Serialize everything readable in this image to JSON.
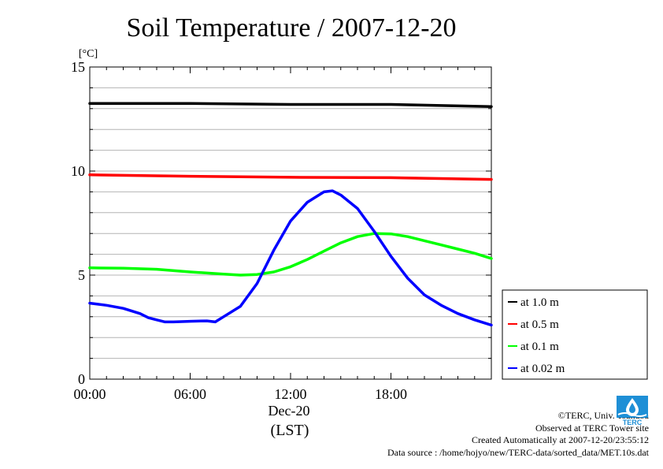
{
  "chart_data": {
    "type": "line",
    "title": "Soil Temperature / 2007-12-20",
    "ylabel": "[°C]",
    "xlabel": "(LST)",
    "date_label": "Dec-20",
    "ylim": [
      0,
      15
    ],
    "yticks": [
      "0",
      "5",
      "10",
      "15"
    ],
    "xlim": [
      0,
      24
    ],
    "xticks": [
      {
        "hour": 0,
        "label": "00:00"
      },
      {
        "hour": 6,
        "label": "06:00"
      },
      {
        "hour": 12,
        "label": "12:00"
      },
      {
        "hour": 18,
        "label": "18:00"
      }
    ],
    "grid": true,
    "legend_position": "right",
    "series": [
      {
        "name": "at 1.0 m",
        "color": "#000000",
        "x": [
          0,
          6,
          12,
          18,
          24
        ],
        "y": [
          13.25,
          13.25,
          13.2,
          13.2,
          13.1
        ]
      },
      {
        "name": "at 0.5 m",
        "color": "#ff0000",
        "x": [
          0,
          6,
          12,
          18,
          24
        ],
        "y": [
          9.82,
          9.75,
          9.7,
          9.68,
          9.6
        ]
      },
      {
        "name": "at 0.1 m",
        "color": "#00ff00",
        "x": [
          0,
          2,
          4,
          6,
          8,
          9,
          10,
          11,
          12,
          13,
          14,
          15,
          16,
          17,
          18,
          19,
          20,
          21,
          22,
          23,
          24
        ],
        "y": [
          5.35,
          5.33,
          5.28,
          5.15,
          5.05,
          5.0,
          5.03,
          5.15,
          5.4,
          5.75,
          6.15,
          6.55,
          6.85,
          7.0,
          6.98,
          6.85,
          6.65,
          6.45,
          6.25,
          6.05,
          5.8
        ]
      },
      {
        "name": "at 0.02 m",
        "color": "#0000ff",
        "x": [
          0,
          1,
          2,
          3,
          3.5,
          4,
          4.5,
          5,
          6,
          7,
          7.5,
          8,
          9,
          10,
          11,
          12,
          13,
          14,
          14.5,
          15,
          16,
          17,
          18,
          19,
          20,
          21,
          22,
          23,
          24
        ],
        "y": [
          3.65,
          3.55,
          3.4,
          3.15,
          2.95,
          2.85,
          2.75,
          2.75,
          2.78,
          2.8,
          2.75,
          3.0,
          3.5,
          4.6,
          6.2,
          7.6,
          8.5,
          9.0,
          9.05,
          8.85,
          8.2,
          7.1,
          5.9,
          4.85,
          4.05,
          3.55,
          3.15,
          2.85,
          2.6
        ]
      }
    ]
  },
  "credits": {
    "copyright": "©TERC, Univ. Tsukuba",
    "site": "Observed at TERC Tower site",
    "created": "Created Automatically at 2007-12-20/23:55:12",
    "source": "Data source : /home/hojyo/new/TERC-data/sorted_data/MET.10s.dat"
  },
  "logo": {
    "text": "TERC",
    "color": "#1e8fd6"
  }
}
